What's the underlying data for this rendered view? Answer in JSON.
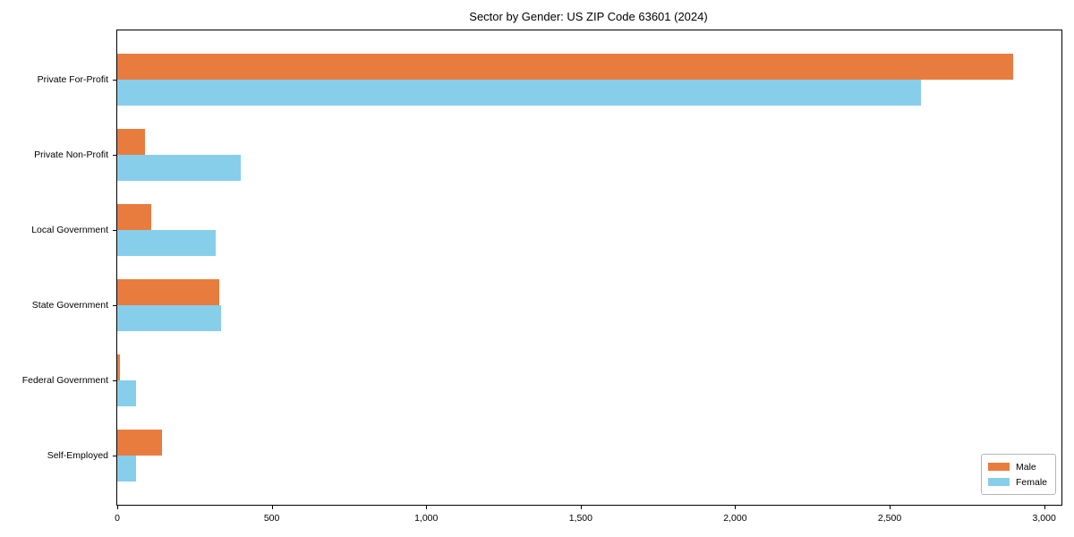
{
  "chart_data": {
    "type": "bar",
    "orientation": "horizontal",
    "title": "Sector by Gender: US ZIP Code 63601 (2024)",
    "categories": [
      "Private For-Profit",
      "Private Non-Profit",
      "Local Government",
      "State Government",
      "Federal Government",
      "Self-Employed"
    ],
    "series": [
      {
        "name": "Male",
        "color": "#e87c3e",
        "values": [
          2900,
          90,
          110,
          330,
          8,
          145
        ]
      },
      {
        "name": "Female",
        "color": "#87ceeb",
        "values": [
          2600,
          400,
          320,
          335,
          60,
          60
        ]
      }
    ],
    "xlabel": "",
    "ylabel": "",
    "xlim": [
      0,
      3056
    ],
    "xticks": [
      0,
      500,
      1000,
      1500,
      2000,
      2500,
      3000
    ],
    "xtick_labels": [
      "0",
      "500",
      "1,000",
      "1,500",
      "2,000",
      "2,500",
      "3,000"
    ],
    "grid": false,
    "legend_position": "lower right",
    "background_color": "#ffffff",
    "axis_color": "#000000"
  }
}
